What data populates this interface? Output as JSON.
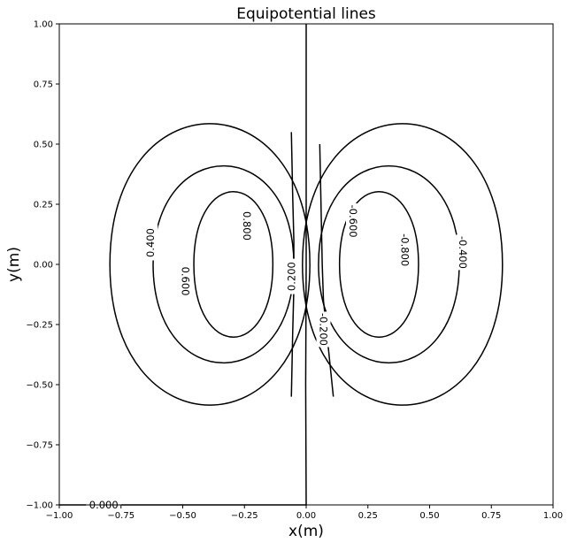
{
  "chart_data": {
    "type": "contour",
    "title": "Equipotential lines",
    "xlabel": "x(m)",
    "ylabel": "y(m)",
    "xlim": [
      -1.0,
      1.0
    ],
    "ylim": [
      -1.0,
      1.0
    ],
    "x_ticks": [
      -1.0,
      -0.75,
      -0.5,
      -0.25,
      0.0,
      0.25,
      0.5,
      0.75,
      1.0
    ],
    "x_tick_labels": [
      "−1.00",
      "−0.75",
      "−0.50",
      "−0.25",
      "0.00",
      "0.25",
      "0.50",
      "0.75",
      "1.00"
    ],
    "y_ticks": [
      1.0,
      0.75,
      0.5,
      0.25,
      0.0,
      -0.25,
      -0.5,
      -0.75,
      -1.0
    ],
    "y_tick_labels": [
      "1.00",
      "0.75",
      "0.50",
      "0.25",
      "0.00",
      "−0.25",
      "−0.50",
      "−0.75",
      "−1.00"
    ],
    "grid": false,
    "line_color": "#000000",
    "contours": [
      {
        "level": 0.4,
        "label": "0.400",
        "cx": -0.39,
        "cy": 0.0,
        "rx": 0.405,
        "ry": 0.6,
        "label_at": [
          -0.63,
          0.09
        ],
        "label_angle": -90
      },
      {
        "level": 0.6,
        "label": "0.600",
        "cx": -0.335,
        "cy": 0.0,
        "rx": 0.285,
        "ry": 0.42,
        "label_at": [
          -0.49,
          -0.07
        ],
        "label_angle": 90
      },
      {
        "level": 0.8,
        "label": "0.800",
        "cx": -0.295,
        "cy": 0.0,
        "rx": 0.16,
        "ry": 0.31,
        "label_at": [
          -0.24,
          0.16
        ],
        "label_angle": 90
      },
      {
        "level": -0.4,
        "label": "-0.400",
        "cx": 0.39,
        "cy": 0.0,
        "rx": 0.405,
        "ry": 0.6,
        "label_at": [
          0.635,
          0.05
        ],
        "label_angle": 90
      },
      {
        "level": -0.6,
        "label": "-0.600",
        "cx": 0.335,
        "cy": 0.0,
        "rx": 0.285,
        "ry": 0.42,
        "label_at": [
          0.19,
          0.18
        ],
        "label_angle": 90
      },
      {
        "level": -0.8,
        "label": "-0.800",
        "cx": 0.295,
        "cy": 0.0,
        "rx": 0.16,
        "ry": 0.31,
        "label_at": [
          0.4,
          0.06
        ],
        "label_angle": 90
      }
    ],
    "contour_lines": [
      {
        "level": 0.2,
        "label": "0.200",
        "x": [
          -0.06,
          -0.055,
          -0.05,
          -0.05,
          -0.055,
          -0.06
        ],
        "y": [
          0.55,
          0.3,
          0.1,
          -0.1,
          -0.3,
          -0.55
        ],
        "label_at": [
          -0.06,
          -0.05
        ],
        "label_angle": -90
      },
      {
        "level": -0.2,
        "label": "-0.200",
        "x": [
          0.055,
          0.06,
          0.065,
          0.07,
          0.09,
          0.11
        ],
        "y": [
          0.5,
          0.25,
          0.0,
          -0.15,
          -0.35,
          -0.55
        ],
        "label_at": [
          0.07,
          -0.27
        ],
        "label_angle": 90
      },
      {
        "level": 0.0,
        "label": "0.000",
        "x": [
          0.0,
          0.0,
          -0.002,
          0.0,
          -1.0
        ],
        "y": [
          1.0,
          0.0,
          -0.5,
          -1.0,
          -1.0
        ],
        "label_at": [
          -0.82,
          -1.0
        ],
        "label_angle": 0
      }
    ]
  }
}
